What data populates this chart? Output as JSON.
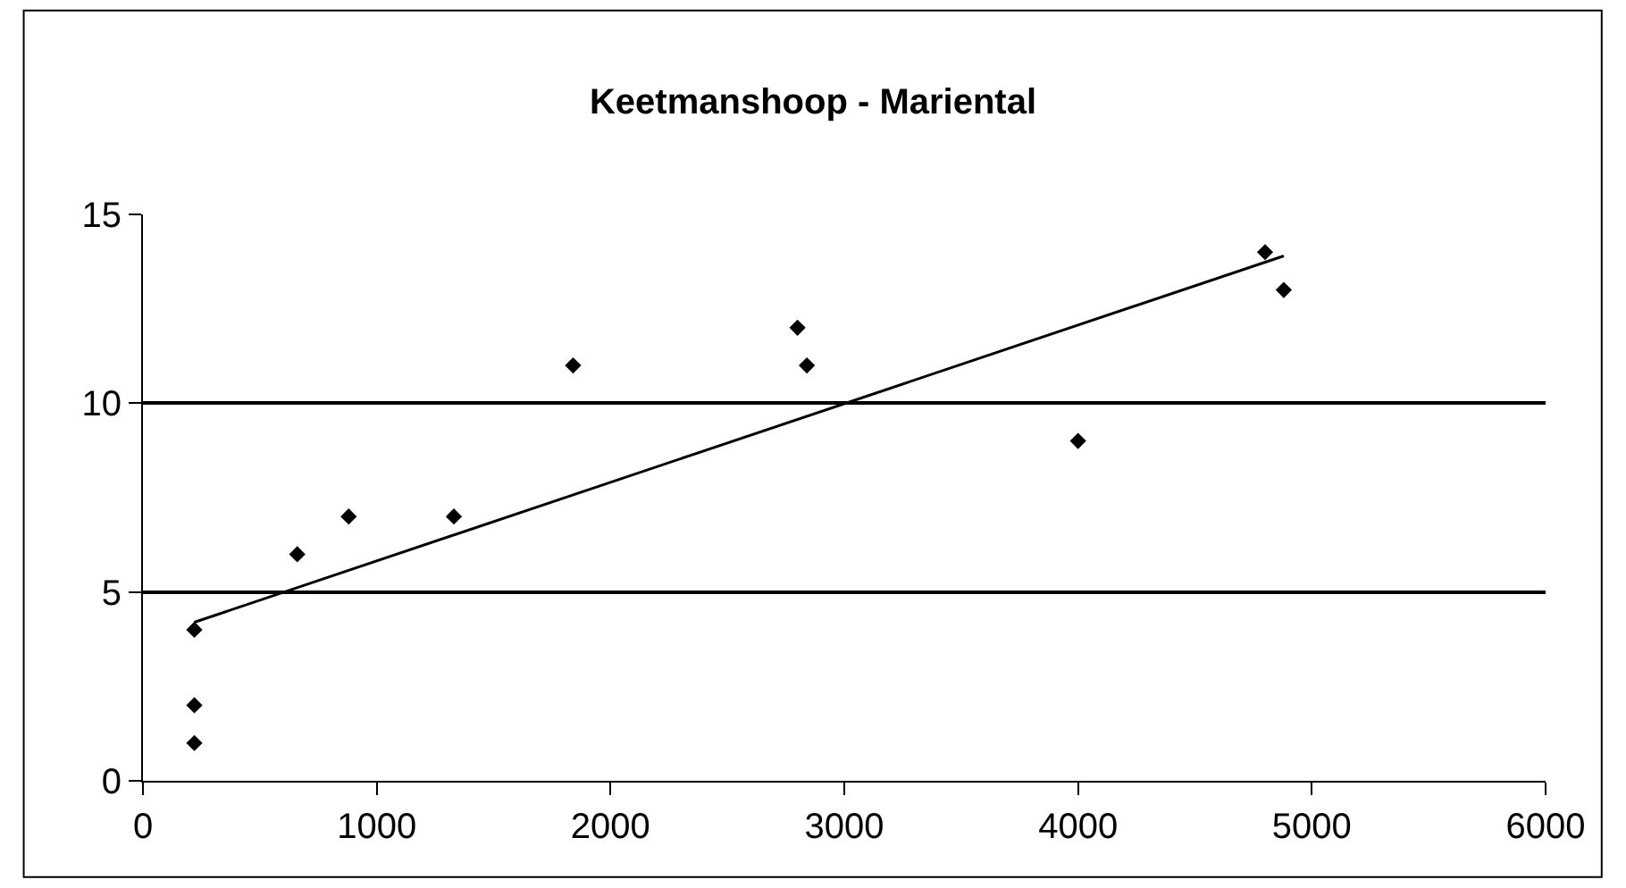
{
  "chart_data": {
    "type": "scatter",
    "title": "Keetmanshoop - Mariental",
    "xlim": [
      0,
      6000
    ],
    "xticks": [
      0,
      1000,
      2000,
      3000,
      4000,
      5000,
      6000
    ],
    "ylim": [
      0,
      15
    ],
    "yticks": [
      0,
      5,
      10,
      15
    ],
    "grid": "y",
    "legend": false,
    "series": [
      {
        "color": "#000000",
        "marker": "diamond",
        "x": [
          220,
          220,
          220,
          660,
          880,
          1330,
          1840,
          2800,
          2840,
          4000,
          4800,
          4880
        ],
        "values": [
          1,
          2,
          4,
          6,
          7,
          7,
          11,
          12,
          11,
          9,
          14,
          13
        ]
      },
      {
        "type": "line",
        "color": "#000000",
        "x": [
          220,
          4880
        ],
        "values": [
          4.2,
          13.9
        ]
      }
    ]
  }
}
